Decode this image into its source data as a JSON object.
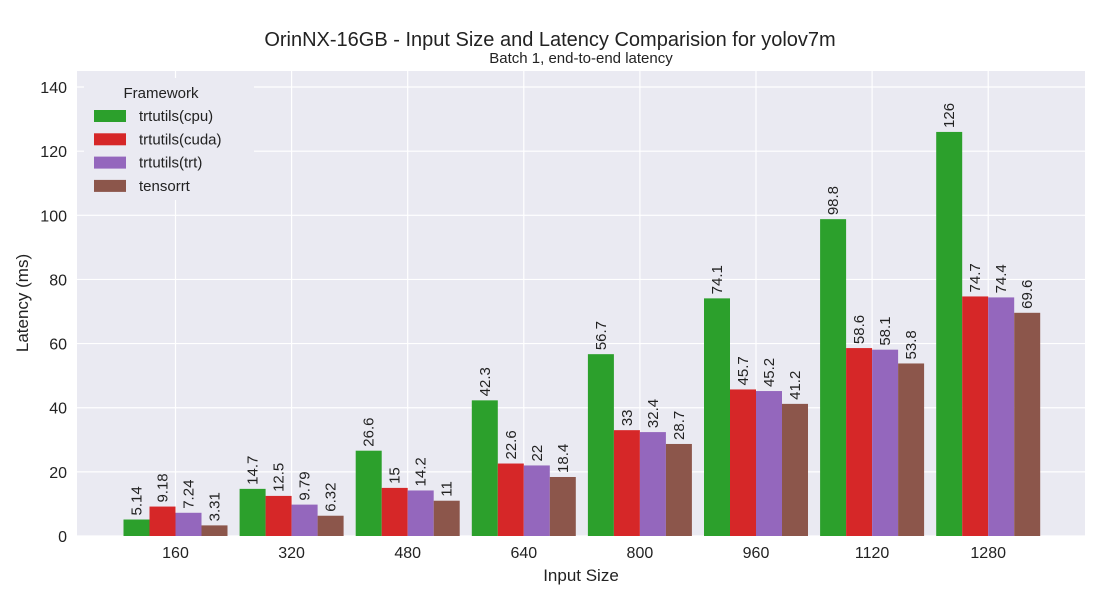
{
  "chart_data": {
    "type": "bar",
    "title": "OrinNX-16GB - Input Size and Latency Comparision for yolov7m",
    "subtitle": "Batch 1, end-to-end latency",
    "xlabel": "Input Size",
    "ylabel": "Latency (ms)",
    "ylim": [
      0,
      145
    ],
    "yticks": [
      0,
      20,
      40,
      60,
      80,
      100,
      120,
      140
    ],
    "grid": true,
    "legend_title": "Framework",
    "legend_position": "top-left",
    "categories": [
      "160",
      "320",
      "480",
      "640",
      "800",
      "960",
      "1120",
      "1280"
    ],
    "series": [
      {
        "name": "trtutils(cpu)",
        "color": "#2ca02c",
        "values": [
          5.14,
          14.7,
          26.6,
          42.3,
          56.7,
          74.1,
          98.8,
          126
        ],
        "labels": [
          "5.14",
          "14.7",
          "26.6",
          "42.3",
          "56.7",
          "74.1",
          "98.8",
          "126"
        ]
      },
      {
        "name": "trtutils(cuda)",
        "color": "#d62728",
        "values": [
          9.18,
          12.5,
          15,
          22.6,
          33,
          45.7,
          58.6,
          74.7
        ],
        "labels": [
          "9.18",
          "12.5",
          "15",
          "22.6",
          "33",
          "45.7",
          "58.6",
          "74.7"
        ]
      },
      {
        "name": "trtutils(trt)",
        "color": "#9467bd",
        "values": [
          7.24,
          9.79,
          14.2,
          22,
          32.4,
          45.2,
          58.1,
          74.4
        ],
        "labels": [
          "7.24",
          "9.79",
          "14.2",
          "22",
          "32.4",
          "45.2",
          "58.1",
          "74.4"
        ]
      },
      {
        "name": "tensorrt",
        "color": "#8c564b",
        "values": [
          3.31,
          6.32,
          11,
          18.4,
          28.7,
          41.2,
          53.8,
          69.6
        ],
        "labels": [
          "3.31",
          "6.32",
          "11",
          "18.4",
          "28.7",
          "41.2",
          "53.8",
          "69.6"
        ]
      }
    ]
  }
}
